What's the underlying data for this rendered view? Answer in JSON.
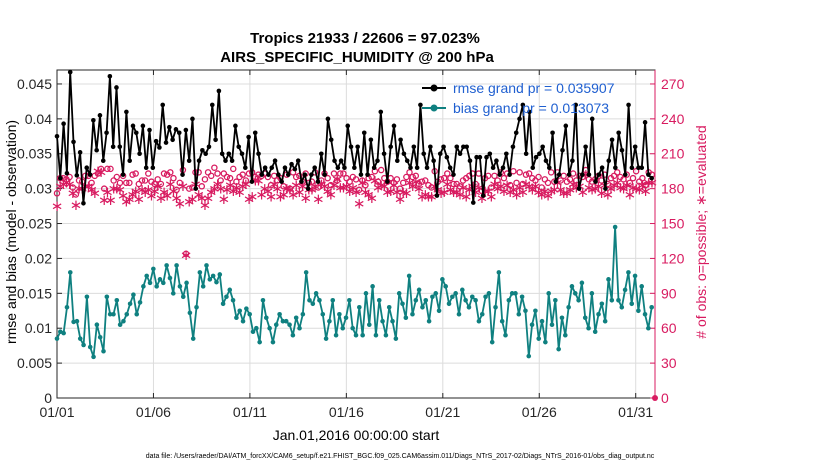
{
  "chart_data": {
    "type": "line",
    "title": "Tropics 21933 / 22606 = 97.023%",
    "subtitle": "AIRS_SPECIFIC_HUMIDITY @ 200 hPa",
    "xlabel": "Jan.01,2016 00:00:00 start",
    "ylabel_left": "rmse and bias (model - observation)",
    "ylabel_right": "# of obs: o=possible; ∗=evaluated",
    "footnote": "data file: /Users/raeder/DAI/ATM_forcXX/CAM6_setup/f.e21.FHIST_BGC.f09_025.CAM6assim.011/Diags_NTrS_2017-02/Diags_NTrS_2016-01/obs_diag_output.nc",
    "x_ticks": [
      "01/01",
      "01/06",
      "01/11",
      "01/16",
      "01/21",
      "01/26",
      "01/31"
    ],
    "x_tick_days": [
      1,
      6,
      11,
      16,
      21,
      26,
      31
    ],
    "xlim": [
      1,
      32
    ],
    "ylim_left": [
      0,
      0.047
    ],
    "y_ticks_left": [
      "0",
      "0.005",
      "0.01",
      "0.015",
      "0.02",
      "0.025",
      "0.03",
      "0.035",
      "0.04",
      "0.045"
    ],
    "y_tick_values_left": [
      0,
      0.005,
      0.01,
      0.015,
      0.02,
      0.025,
      0.03,
      0.035,
      0.04,
      0.045
    ],
    "ylim_right": [
      0,
      282
    ],
    "y_ticks_right": [
      "0",
      "30",
      "60",
      "90",
      "120",
      "150",
      "180",
      "210",
      "240",
      "270"
    ],
    "y_tick_values_right": [
      0,
      30,
      60,
      90,
      120,
      150,
      180,
      210,
      240,
      270
    ],
    "colors": {
      "rmse": "#000000",
      "bias": "#0f8080",
      "obs": "#d81b60",
      "legend_text": "#1f5fd0"
    },
    "series": [
      {
        "name": "rmse grand pr = 0.035907",
        "axis": "left",
        "values": [
          0.0375,
          0.0315,
          0.0393,
          0.0322,
          0.0467,
          0.0367,
          0.0319,
          0.0352,
          0.0279,
          0.033,
          0.032,
          0.0398,
          0.0355,
          0.0405,
          0.034,
          0.038,
          0.0461,
          0.036,
          0.0445,
          0.036,
          0.032,
          0.041,
          0.034,
          0.039,
          0.038,
          0.035,
          0.039,
          0.033,
          0.0384,
          0.033,
          0.0368,
          0.0359,
          0.042,
          0.0366,
          0.0388,
          0.037,
          0.0385,
          0.038,
          0.032,
          0.0384,
          0.034,
          0.04,
          0.03,
          0.034,
          0.0355,
          0.035,
          0.036,
          0.042,
          0.037,
          0.044,
          0.035,
          0.034,
          0.035,
          0.034,
          0.039,
          0.036,
          0.035,
          0.033,
          0.0374,
          0.031,
          0.038,
          0.035,
          0.032,
          0.033,
          0.032,
          0.033,
          0.034,
          0.032,
          0.031,
          0.033,
          0.032,
          0.0335,
          0.0328,
          0.034,
          0.031,
          0.032,
          0.03,
          0.032,
          0.033,
          0.031,
          0.035,
          0.032,
          0.04,
          0.037,
          0.034,
          0.033,
          0.034,
          0.033,
          0.039,
          0.036,
          0.033,
          0.036,
          0.032,
          0.038,
          0.032,
          0.037,
          0.033,
          0.034,
          0.041,
          0.035,
          0.031,
          0.036,
          0.039,
          0.034,
          0.037,
          0.035,
          0.034,
          0.033,
          0.036,
          0.033,
          0.042,
          0.035,
          0.033,
          0.036,
          0.034,
          0.029,
          0.035,
          0.036,
          0.0345,
          0.033,
          0.032,
          0.036,
          0.035,
          0.036,
          0.036,
          0.034,
          0.028,
          0.0345,
          0.0345,
          0.029,
          0.0345,
          0.035,
          0.033,
          0.034,
          0.032,
          0.033,
          0.035,
          0.032,
          0.036,
          0.038,
          0.04,
          0.042,
          0.035,
          0.041,
          0.033,
          0.0345,
          0.035,
          0.036,
          0.034,
          0.033,
          0.038,
          0.031,
          0.032,
          0.0355,
          0.039,
          0.032,
          0.034,
          0.042,
          0.03,
          0.032,
          0.036,
          0.032,
          0.04,
          0.031,
          0.032,
          0.033,
          0.03,
          0.034,
          0.037,
          0.033,
          0.038,
          0.0355,
          0.032,
          0.042,
          0.033,
          0.036,
          0.033,
          0.033,
          0.0395,
          0.032,
          0.0315
        ]
      },
      {
        "name": "bias grand pr = 0.013073",
        "axis": "left",
        "values": [
          0.0085,
          0.0095,
          0.0093,
          0.013,
          0.018,
          0.0109,
          0.011,
          0.0085,
          0.0076,
          0.0145,
          0.0073,
          0.0059,
          0.0105,
          0.0087,
          0.0067,
          0.0145,
          0.012,
          0.012,
          0.014,
          0.0105,
          0.011,
          0.012,
          0.0135,
          0.0148,
          0.012,
          0.0137,
          0.016,
          0.0175,
          0.0165,
          0.0185,
          0.016,
          0.017,
          0.0165,
          0.019,
          0.0172,
          0.015,
          0.019,
          0.016,
          0.0145,
          0.0165,
          0.0122,
          0.0085,
          0.013,
          0.018,
          0.016,
          0.019,
          0.017,
          0.0175,
          0.0166,
          0.0177,
          0.0135,
          0.0145,
          0.0155,
          0.014,
          0.0115,
          0.0125,
          0.011,
          0.0128,
          0.012,
          0.0095,
          0.01,
          0.008,
          0.014,
          0.0115,
          0.01,
          0.008,
          0.0105,
          0.012,
          0.011,
          0.011,
          0.0105,
          0.009,
          0.0115,
          0.01,
          0.012,
          0.018,
          0.014,
          0.0135,
          0.015,
          0.014,
          0.012,
          0.0085,
          0.011,
          0.014,
          0.009,
          0.012,
          0.01,
          0.0115,
          0.014,
          0.01,
          0.009,
          0.013,
          0.009,
          0.015,
          0.0105,
          0.016,
          0.009,
          0.014,
          0.011,
          0.009,
          0.013,
          0.011,
          0.0085,
          0.015,
          0.0135,
          0.0115,
          0.0175,
          0.012,
          0.014,
          0.0155,
          0.013,
          0.014,
          0.011,
          0.0145,
          0.015,
          0.0125,
          0.017,
          0.016,
          0.0135,
          0.0145,
          0.015,
          0.012,
          0.0155,
          0.014,
          0.013,
          0.0145,
          0.014,
          0.011,
          0.012,
          0.0145,
          0.015,
          0.008,
          0.013,
          0.018,
          0.011,
          0.009,
          0.014,
          0.015,
          0.015,
          0.012,
          0.0145,
          0.0125,
          0.006,
          0.0105,
          0.0125,
          0.0085,
          0.011,
          0.008,
          0.015,
          0.0105,
          0.014,
          0.007,
          0.0115,
          0.009,
          0.013,
          0.016,
          0.015,
          0.014,
          0.0165,
          0.0115,
          0.01,
          0.015,
          0.0095,
          0.012,
          0.0135,
          0.011,
          0.017,
          0.014,
          0.0245,
          0.014,
          0.013,
          0.0155,
          0.018,
          0.0135,
          0.0175,
          0.0125,
          0.016,
          0.012,
          0.01,
          0.013
        ]
      },
      {
        "name": "obs possible",
        "axis": "right",
        "marker": "o",
        "values": [
          176,
          189,
          189,
          188,
          190,
          181,
          175,
          187,
          186,
          191,
          191,
          185,
          191,
          193,
          197,
          180,
          197,
          197,
          187,
          190,
          185,
          191,
          185,
          185,
          192,
          193,
          184,
          187,
          187,
          193,
          186,
          184,
          188,
          184,
          193,
          192,
          194,
          189,
          179,
          185,
          196,
          124,
          180,
          181,
          194,
          194,
          182,
          188,
          194,
          191,
          198,
          193,
          187,
          193,
          190,
          189,
          197,
          186,
          190,
          192,
          187,
          193,
          194,
          190,
          192,
          191,
          193,
          190,
          183,
          191,
          187,
          189,
          182,
          192,
          180,
          194,
          190,
          191,
          186,
          193,
          185,
          186,
          194,
          181,
          187,
          193,
          189,
          183,
          193,
          187,
          193,
          193,
          189,
          186,
          190,
          188,
          179,
          187,
          183,
          189,
          190,
          195,
          186,
          196,
          189,
          186,
          189,
          185,
          188,
          180,
          185,
          190,
          194,
          190,
          191,
          184,
          186,
          187,
          183,
          181,
          195,
          186,
          188,
          189,
          193,
          189,
          184,
          184,
          182,
          187,
          189,
          191,
          193,
          184,
          193,
          178,
          189,
          191,
          181,
          191,
          187,
          194,
          189,
          193,
          183,
          195,
          185,
          194,
          184,
          192,
          193,
          189,
          187,
          190,
          181,
          188,
          185,
          194,
          186,
          194,
          187,
          191,
          186,
          188,
          193,
          187,
          191,
          190,
          196,
          188,
          186,
          188,
          191,
          187,
          192,
          184,
          189,
          191,
          194,
          190,
          188,
          192,
          185,
          189,
          195,
          186,
          189,
          183,
          194,
          192
        ]
      },
      {
        "name": "obs evaluated",
        "axis": "right",
        "marker": "*",
        "values": [
          166,
          183,
          185,
          186,
          185,
          177,
          167,
          181,
          181,
          183,
          183,
          180,
          177,
          196,
          195,
          171,
          178,
          171,
          181,
          181,
          180,
          175,
          170,
          172,
          176,
          179,
          172,
          180,
          178,
          180,
          175,
          179,
          183,
          173,
          178,
          175,
          185,
          179,
          173,
          168,
          183,
          124,
          170,
          172,
          185,
          176,
          173,
          167,
          173,
          178,
          181,
          185,
          181,
          172,
          180,
          184,
          179,
          182,
          178,
          183,
          185,
          172,
          174,
          188,
          188,
          176,
          181,
          179,
          174,
          185,
          181,
          174,
          176,
          181,
          180,
          176,
          184,
          178,
          183,
          173,
          180,
          180,
          183,
          172,
          185,
          183,
          179,
          176,
          184,
          189,
          182,
          182,
          183,
          179,
          182,
          178,
          168,
          186,
          178,
          176,
          173,
          188,
          182,
          184,
          183,
          178,
          179,
          184,
          178,
          172,
          178,
          177,
          186,
          183,
          187,
          181,
          174,
          176,
          174,
          174,
          183,
          180,
          177,
          178,
          185,
          180,
          178,
          178,
          176,
          182,
          174,
          180,
          183,
          178,
          182,
          173,
          179,
          179,
          174,
          185,
          181,
          183,
          179,
          184,
          178,
          180,
          176,
          182,
          178,
          185,
          183,
          180,
          183,
          178,
          176,
          179,
          175,
          179,
          180,
          186,
          180,
          177,
          177,
          180,
          185,
          182,
          183,
          178,
          193,
          182,
          180,
          181,
          183,
          177,
          184,
          176,
          181,
          184,
          186,
          182,
          181,
          184,
          176,
          182,
          181,
          180,
          184,
          179,
          186,
          186
        ]
      }
    ]
  }
}
